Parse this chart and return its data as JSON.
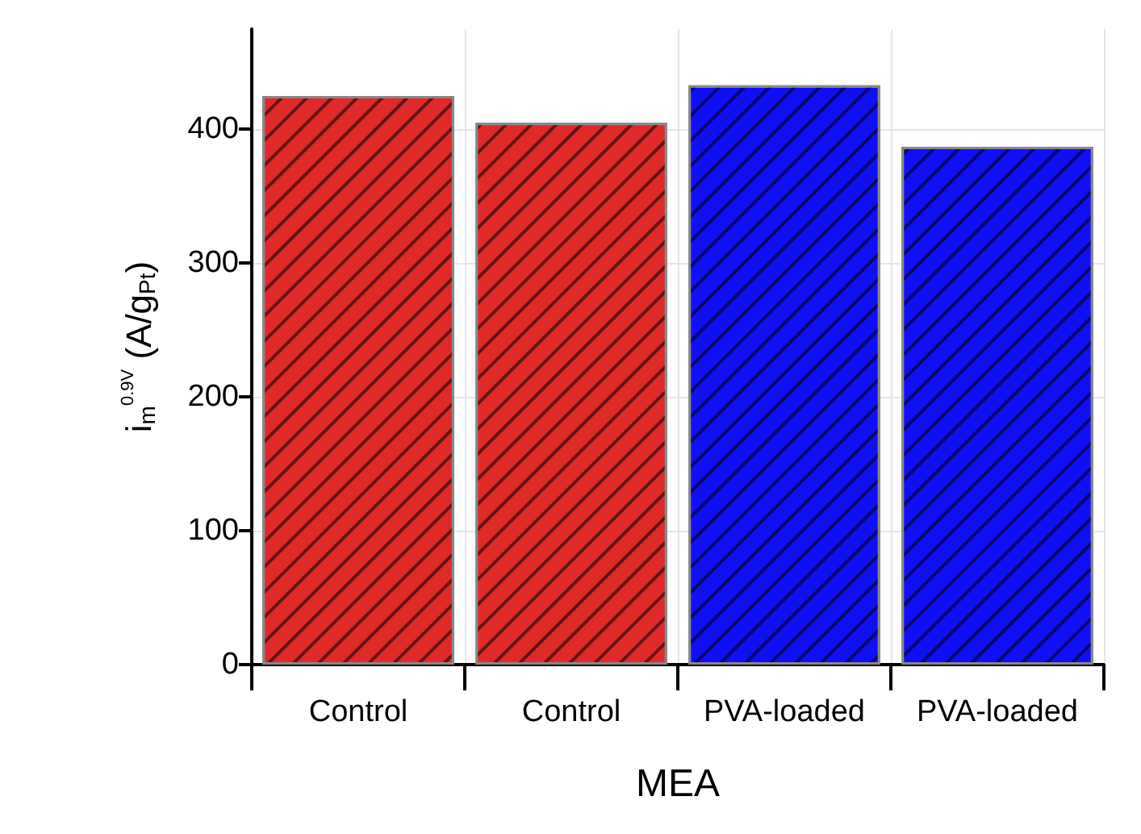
{
  "chart_data": {
    "type": "bar",
    "categories": [
      "Control",
      "Control",
      "PVA-loaded",
      "PVA-loaded"
    ],
    "values": [
      425,
      405,
      433,
      387
    ],
    "colors": [
      "#e02a2a",
      "#e02a2a",
      "#1010f5",
      "#1010f5"
    ],
    "xlabel": "MEA",
    "ylabel": "i$_{m}$$^{0.9V}$ (A/g$_{Pt}$)",
    "ylim": [
      0,
      475
    ],
    "yticks": [
      0,
      100,
      200,
      300,
      400
    ],
    "grid": true
  }
}
